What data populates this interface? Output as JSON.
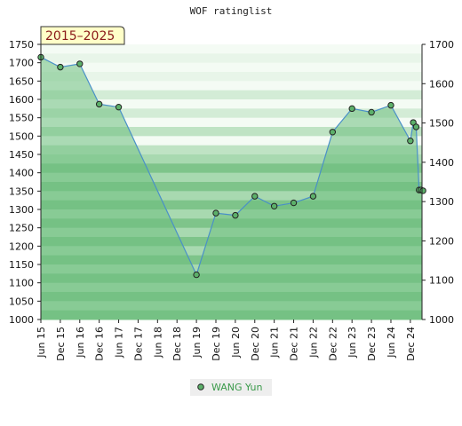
{
  "chart_data": {
    "type": "area",
    "title": "WOF ratinglist",
    "period_label": "2015–2025",
    "xlabel": "",
    "ylabel": "",
    "x_ticks": [
      "Jun 15",
      "Dec 15",
      "Jun 16",
      "Dec 16",
      "Jun 17",
      "Dec 17",
      "Jun 18",
      "Dec 18",
      "Jun 19",
      "Dec 19",
      "Jun 20",
      "Dec 20",
      "Jun 21",
      "Dec 21",
      "Jun 22",
      "Dec 22",
      "Jun 23",
      "Dec 23",
      "Jun 24",
      "Dec 24"
    ],
    "x_range": [
      0,
      19.6
    ],
    "left_axis": {
      "ticks": [
        1000,
        1050,
        1100,
        1150,
        1200,
        1250,
        1300,
        1350,
        1400,
        1450,
        1500,
        1550,
        1600,
        1650,
        1700,
        1750
      ],
      "range": [
        1000,
        1750
      ]
    },
    "right_axis": {
      "ticks": [
        1000,
        1100,
        1200,
        1300,
        1400,
        1500,
        1600,
        1700
      ],
      "range": [
        1000,
        1700
      ]
    },
    "grid": "horizontal bands",
    "legend_position": "bottom-center",
    "series": [
      {
        "name": "WANG Yun",
        "color": "#4a90c8",
        "fill": "#6ec080",
        "marker_color": "#5cb06a",
        "points": [
          {
            "x": 0.0,
            "y": 1715
          },
          {
            "x": 1.0,
            "y": 1688
          },
          {
            "x": 2.0,
            "y": 1697
          },
          {
            "x": 3.0,
            "y": 1587
          },
          {
            "x": 4.0,
            "y": 1579
          },
          {
            "x": 8.0,
            "y": 1122
          },
          {
            "x": 9.0,
            "y": 1290
          },
          {
            "x": 10.0,
            "y": 1284
          },
          {
            "x": 11.0,
            "y": 1336
          },
          {
            "x": 12.0,
            "y": 1309
          },
          {
            "x": 13.0,
            "y": 1318
          },
          {
            "x": 14.0,
            "y": 1336
          },
          {
            "x": 15.0,
            "y": 1511
          },
          {
            "x": 16.0,
            "y": 1575
          },
          {
            "x": 17.0,
            "y": 1565
          },
          {
            "x": 18.0,
            "y": 1584
          },
          {
            "x": 19.0,
            "y": 1487
          },
          {
            "x": 19.15,
            "y": 1537
          },
          {
            "x": 19.3,
            "y": 1525
          },
          {
            "x": 19.45,
            "y": 1353
          },
          {
            "x": 19.55,
            "y": 1353
          },
          {
            "x": 19.65,
            "y": 1351
          }
        ]
      }
    ]
  }
}
